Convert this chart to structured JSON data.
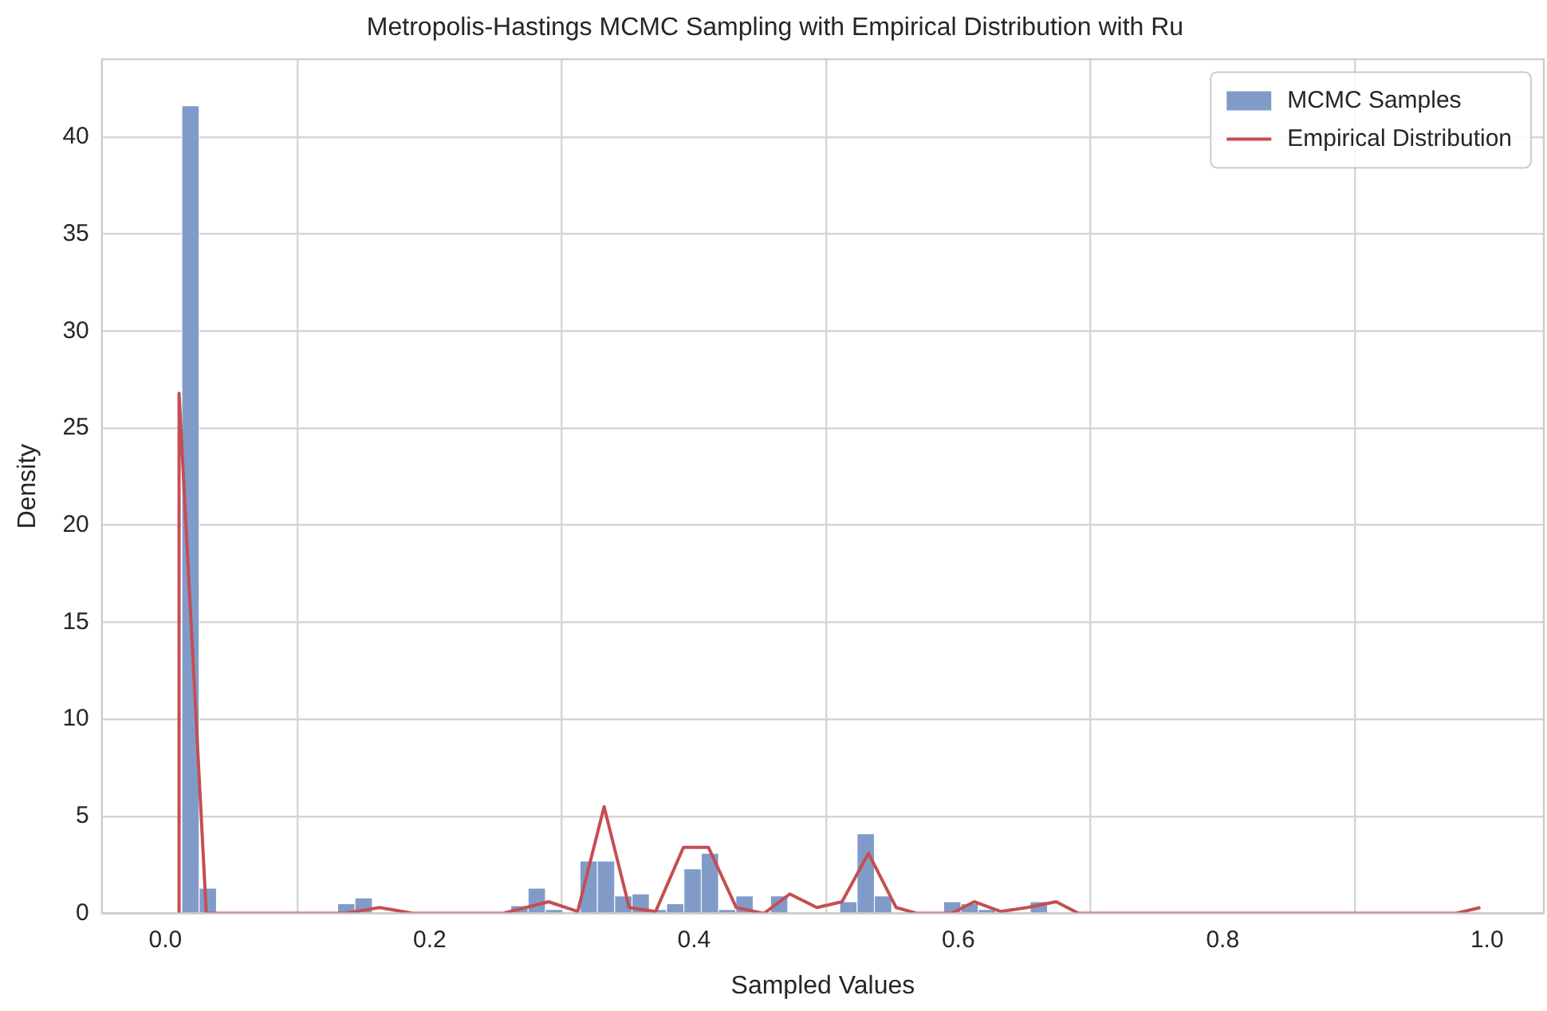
{
  "chart_data": {
    "type": "histogram",
    "title": "Metropolis-Hastings MCMC Sampling with Empirical Distribution with Ru",
    "xlabel": "Sampled Values",
    "ylabel": "Density",
    "bins": [
      0.0125,
      0.0256,
      0.0387,
      0.0518,
      0.0649,
      0.078,
      0.0911,
      0.1042,
      0.1173,
      0.1304,
      0.1435,
      0.1566,
      0.1697,
      0.1828,
      0.1959,
      0.209,
      0.2221,
      0.2352,
      0.2483,
      0.2614,
      0.2745,
      0.2876,
      0.3007,
      0.3138,
      0.3269,
      0.34,
      0.3531,
      0.3662,
      0.3793,
      0.3924,
      0.4055,
      0.4186,
      0.4317,
      0.4448,
      0.4579,
      0.471,
      0.4841,
      0.4972,
      0.5103,
      0.5234,
      0.5365,
      0.5496,
      0.5627,
      0.5758,
      0.5889,
      0.602,
      0.6151,
      0.6282,
      0.6413,
      0.6544,
      0.6675,
      0.6806,
      0.6937,
      0.7068,
      0.7199,
      0.733,
      0.7461,
      0.7592,
      0.7723,
      0.7854,
      0.7985,
      0.8116,
      0.8247,
      0.8378,
      0.8509,
      0.864,
      0.8771,
      0.8902,
      0.9033,
      0.9164,
      0.9295,
      0.9426,
      0.9557,
      0.9688,
      0.9819,
      0.995
    ],
    "series": [
      {
        "name": "MCMC Samples",
        "color": "#819bc9",
        "values": [
          41.6,
          1.3,
          0,
          0,
          0,
          0,
          0,
          0,
          0,
          0.5,
          0.8,
          0,
          0,
          0,
          0,
          0,
          0,
          0,
          0,
          0.4,
          1.3,
          0.2,
          0,
          2.7,
          2.7,
          0.9,
          1.0,
          0.2,
          0.5,
          2.3,
          3.1,
          0.2,
          0.9,
          0,
          0.9,
          null,
          0,
          0,
          0.6,
          4.1,
          0.9,
          0,
          0,
          0,
          0.6,
          0.5,
          0.2,
          0,
          0,
          0.6,
          0,
          0,
          0,
          0,
          0,
          0,
          0,
          0,
          0,
          0,
          0,
          0,
          0,
          0,
          0,
          0,
          0,
          0,
          0,
          0,
          0,
          0,
          0,
          0,
          0
        ]
      },
      {
        "name": "Empirical Distribution",
        "type": "line",
        "color": "#c44e52",
        "x": [
          0.0104,
          0.0104,
          0.031,
          0.135,
          0.162,
          0.188,
          0.255,
          0.29,
          0.312,
          0.332,
          0.351,
          0.371,
          0.392,
          0.411,
          0.432,
          0.453,
          0.4725,
          0.493,
          0.512,
          0.532,
          0.553,
          0.569,
          0.595,
          0.612,
          0.632,
          0.652,
          0.674,
          0.691,
          0.976,
          0.995
        ],
        "values": [
          0,
          26.8,
          0,
          0,
          0.3,
          0,
          0,
          0.6,
          0.1,
          5.5,
          0.3,
          0.1,
          3.4,
          3.4,
          0.3,
          0,
          1.0,
          0.3,
          0.6,
          3.1,
          0.3,
          0,
          0,
          0.6,
          0.1,
          0.3,
          0.6,
          0,
          0,
          0.3
        ]
      }
    ],
    "xlim": [
      -0.048,
      1.043
    ],
    "xticks": [
      {
        "value": 0,
        "label": "0.0"
      },
      {
        "value": 0.2,
        "label": "0.2"
      },
      {
        "value": 0.4,
        "label": "0.4"
      },
      {
        "value": 0.6,
        "label": "0.6"
      },
      {
        "value": 0.8,
        "label": "0.8"
      },
      {
        "value": 1,
        "label": "1.0"
      }
    ],
    "ylim": [
      0,
      44
    ],
    "yticks": [
      0,
      5,
      10,
      15,
      20,
      25,
      30,
      35,
      40
    ],
    "grid": true,
    "legend": "top right"
  }
}
